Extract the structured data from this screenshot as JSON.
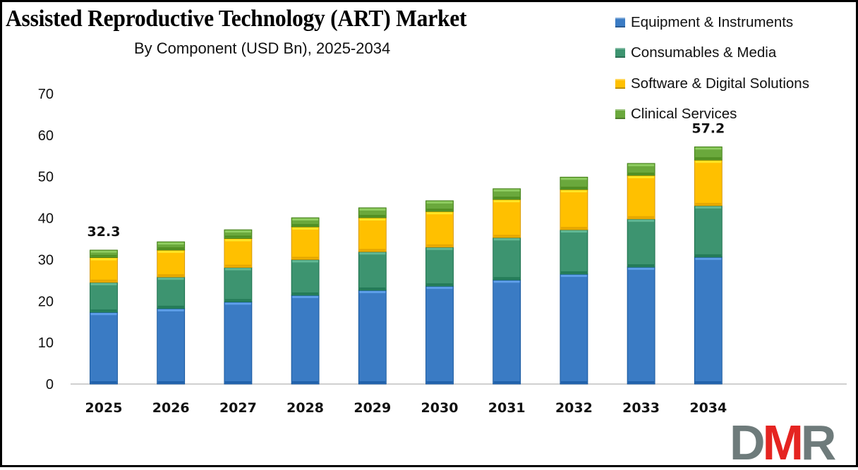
{
  "chart_data": {
    "type": "bar",
    "stacked": true,
    "title": "Assisted Reproductive Technology (ART) Market",
    "subtitle": "By Component (USD Bn), 2025-2034",
    "xlabel": "",
    "ylabel": "",
    "categories": [
      "2025",
      "2026",
      "2027",
      "2028",
      "2029",
      "2030",
      "2031",
      "2032",
      "2033",
      "2034"
    ],
    "ylim": [
      0,
      70
    ],
    "yticks": [
      "0",
      "10",
      "20",
      "30",
      "40",
      "50",
      "60",
      "70"
    ],
    "grid": false,
    "legend_position": "top-right",
    "series": [
      {
        "name": "Equipment & Instruments",
        "color": "#3a7bc4",
        "values": [
          17.3,
          18.2,
          19.8,
          21.4,
          22.6,
          23.6,
          25.1,
          26.5,
          28.2,
          30.6
        ]
      },
      {
        "name": "Consumables & Media",
        "color": "#3d9470",
        "values": [
          7.2,
          7.6,
          8.3,
          8.6,
          9.3,
          9.4,
          10.2,
          10.7,
          11.6,
          12.4
        ]
      },
      {
        "name": "Software & Digital Solutions",
        "color": "#ffc000",
        "values": [
          6.0,
          6.5,
          7.0,
          7.9,
          8.2,
          8.6,
          9.2,
          9.7,
          10.5,
          11.0
        ]
      },
      {
        "name": "Clinical Services",
        "color": "#6aa83c",
        "values": [
          1.8,
          2.0,
          2.1,
          2.2,
          2.4,
          2.6,
          2.6,
          3.0,
          2.9,
          3.2
        ]
      }
    ],
    "annotations": [
      {
        "category": "2025",
        "text": "32.3"
      },
      {
        "category": "2034",
        "text": "57.2"
      }
    ]
  },
  "logo": {
    "d": "D",
    "m": "M",
    "r": "R"
  }
}
